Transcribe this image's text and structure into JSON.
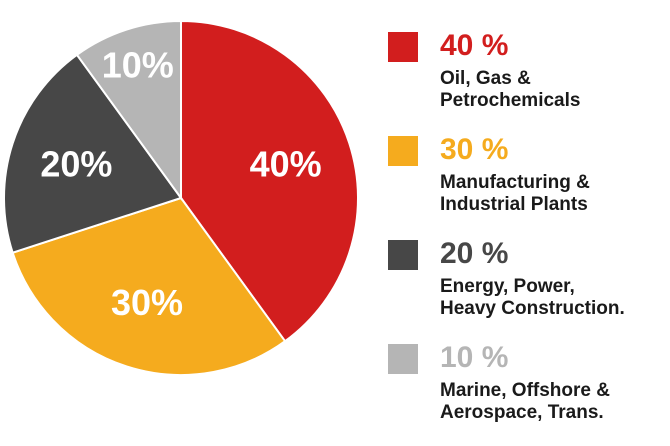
{
  "chart_data": {
    "type": "pie",
    "slices": [
      {
        "label": "40%",
        "value": 40,
        "color": "#d21e1e",
        "legend_pct": "40 %",
        "legend_lines": [
          "Oil, Gas &",
          "Petrochemicals"
        ]
      },
      {
        "label": "30%",
        "value": 30,
        "color": "#f5ab1e",
        "legend_pct": "30 %",
        "legend_lines": [
          "Manufacturing &",
          "Industrial Plants"
        ]
      },
      {
        "label": "20%",
        "value": 20,
        "color": "#474747",
        "legend_pct": "20 %",
        "legend_lines": [
          "Energy, Power,",
          "Heavy Construction."
        ]
      },
      {
        "label": "10%",
        "value": 10,
        "color": "#b5b5b5",
        "legend_pct": "10 %",
        "legend_lines": [
          "Marine, Offshore &",
          "Aerospace, Trans."
        ]
      }
    ],
    "start_angle": "12 o'clock",
    "direction": "clockwise",
    "legend_position": "right"
  }
}
